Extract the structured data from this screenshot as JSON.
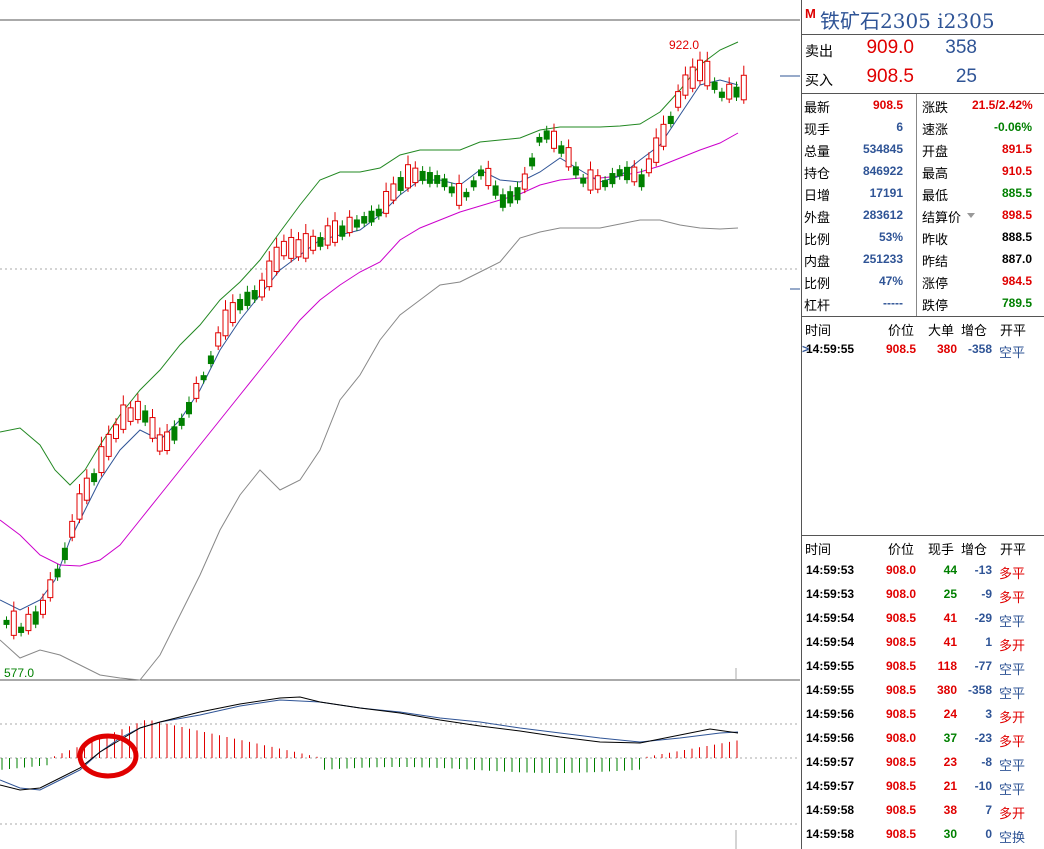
{
  "instrument": {
    "badge": "M",
    "title": "铁矿石2305 i2305"
  },
  "chart": {
    "high_label": "922.0",
    "low_label": "577.0",
    "colors": {
      "up": "#e00000",
      "down": "#008000",
      "ma_fast": "#2f5496",
      "ma_mid": "#cc00cc",
      "band": "#228822",
      "long_ma": "#888888"
    }
  },
  "order_book": {
    "ask": {
      "label": "卖出",
      "price": "909.0",
      "volume": "358"
    },
    "bid": {
      "label": "买入",
      "price": "908.5",
      "volume": "25"
    }
  },
  "quote": [
    {
      "l1": "最新",
      "v1": "908.5",
      "c1": "red",
      "l2": "涨跌",
      "v2": "21.5/2.42%",
      "c2": "red"
    },
    {
      "l1": "现手",
      "v1": "6",
      "c1": "blue",
      "l2": "速涨",
      "v2": "-0.06%",
      "c2": "green"
    },
    {
      "l1": "总量",
      "v1": "534845",
      "c1": "blue",
      "l2": "开盘",
      "v2": "891.5",
      "c2": "red"
    },
    {
      "l1": "持仓",
      "v1": "846922",
      "c1": "blue",
      "l2": "最高",
      "v2": "910.5",
      "c2": "red"
    },
    {
      "l1": "日增",
      "v1": "17191",
      "c1": "blue",
      "l2": "最低",
      "v2": "885.5",
      "c2": "green"
    },
    {
      "l1": "外盘",
      "v1": "283612",
      "c1": "blue",
      "l2": "结算价",
      "v2": "898.5",
      "c2": "red",
      "dd": true
    },
    {
      "l1": "比例",
      "v1": "53%",
      "c1": "blue",
      "l2": "昨收",
      "v2": "888.5",
      "c2": "blk"
    },
    {
      "l1": "内盘",
      "v1": "251233",
      "c1": "blue",
      "l2": "昨结",
      "v2": "887.0",
      "c2": "blk"
    },
    {
      "l1": "比例",
      "v1": "47%",
      "c1": "blue",
      "l2": "涨停",
      "v2": "984.5",
      "c2": "red"
    },
    {
      "l1": "杠杆",
      "v1": "-----",
      "c1": "blue",
      "l2": "跌停",
      "v2": "789.5",
      "c2": "green"
    }
  ],
  "big_trade": {
    "headers": [
      "时间",
      "价位",
      "大单",
      "增仓",
      "开平"
    ],
    "rows": [
      {
        "time": "14:59:55",
        "price": "908.5",
        "vol": "380",
        "chg": "-358",
        "type": "空平"
      }
    ]
  },
  "ticks": {
    "headers": [
      "时间",
      "价位",
      "现手",
      "增仓",
      "开平"
    ],
    "rows": [
      {
        "time": "14:59:53",
        "price": "908.0",
        "pc": "red",
        "vol": "44",
        "vc": "green",
        "chg": "-13",
        "type": "多平",
        "tc": "red"
      },
      {
        "time": "14:59:53",
        "price": "908.0",
        "pc": "red",
        "vol": "25",
        "vc": "green",
        "chg": "-9",
        "type": "多平",
        "tc": "red"
      },
      {
        "time": "14:59:54",
        "price": "908.5",
        "pc": "red",
        "vol": "41",
        "vc": "red",
        "chg": "-29",
        "type": "空平",
        "tc": "blue"
      },
      {
        "time": "14:59:54",
        "price": "908.5",
        "pc": "red",
        "vol": "41",
        "vc": "red",
        "chg": "1",
        "type": "多开",
        "tc": "red"
      },
      {
        "time": "14:59:55",
        "price": "908.5",
        "pc": "red",
        "vol": "118",
        "vc": "red",
        "chg": "-77",
        "type": "空平",
        "tc": "blue"
      },
      {
        "time": "14:59:55",
        "price": "908.5",
        "pc": "red",
        "vol": "380",
        "vc": "red",
        "chg": "-358",
        "type": "空平",
        "tc": "blue"
      },
      {
        "time": "14:59:56",
        "price": "908.5",
        "pc": "red",
        "vol": "24",
        "vc": "red",
        "chg": "3",
        "type": "多开",
        "tc": "red"
      },
      {
        "time": "14:59:56",
        "price": "908.0",
        "pc": "red",
        "vol": "37",
        "vc": "green",
        "chg": "-23",
        "type": "多平",
        "tc": "red"
      },
      {
        "time": "14:59:57",
        "price": "908.5",
        "pc": "red",
        "vol": "23",
        "vc": "red",
        "chg": "-8",
        "type": "空平",
        "tc": "blue"
      },
      {
        "time": "14:59:57",
        "price": "908.5",
        "pc": "red",
        "vol": "21",
        "vc": "red",
        "chg": "-10",
        "type": "空平",
        "tc": "blue"
      },
      {
        "time": "14:59:58",
        "price": "908.5",
        "pc": "red",
        "vol": "38",
        "vc": "red",
        "chg": "7",
        "type": "多开",
        "tc": "red"
      },
      {
        "time": "14:59:58",
        "price": "908.5",
        "pc": "red",
        "vol": "30",
        "vc": "green",
        "chg": "0",
        "type": "空换",
        "tc": "blue"
      }
    ]
  }
}
